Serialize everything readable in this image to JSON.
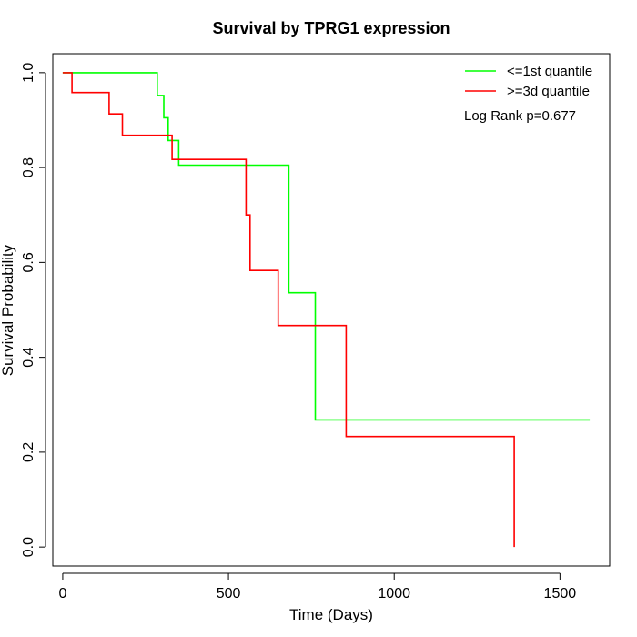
{
  "chart_data": {
    "type": "line",
    "title": "Survival by TPRG1 expression",
    "xlabel": "Time (Days)",
    "ylabel": "Survival Probability",
    "xlim": [
      -30,
      1650
    ],
    "ylim": [
      -0.04,
      1.04
    ],
    "x_ticks": [
      0,
      500,
      1000,
      1500
    ],
    "y_ticks": [
      0.0,
      0.2,
      0.4,
      0.6,
      0.8,
      1.0
    ],
    "x_tick_labels": [
      "0",
      "500",
      "1000",
      "1500"
    ],
    "y_tick_labels": [
      "0.0",
      "0.2",
      "0.4",
      "0.6",
      "0.8",
      "1.0"
    ],
    "grid": false,
    "legend_position": "top-right",
    "annotation": "Log Rank p=0.677",
    "series": [
      {
        "name": "<=1st quantile",
        "color": "#00ff00",
        "points": [
          [
            0,
            1.0
          ],
          [
            285,
            1.0
          ],
          [
            285,
            0.952
          ],
          [
            305,
            0.952
          ],
          [
            305,
            0.905
          ],
          [
            318,
            0.905
          ],
          [
            318,
            0.857
          ],
          [
            350,
            0.857
          ],
          [
            350,
            0.805
          ],
          [
            682,
            0.805
          ],
          [
            682,
            0.536
          ],
          [
            762,
            0.536
          ],
          [
            762,
            0.268
          ],
          [
            1590,
            0.268
          ]
        ]
      },
      {
        "name": ">=3d quantile",
        "color": "#ff0000",
        "points": [
          [
            0,
            1.0
          ],
          [
            28,
            1.0
          ],
          [
            28,
            0.958
          ],
          [
            140,
            0.958
          ],
          [
            140,
            0.913
          ],
          [
            180,
            0.913
          ],
          [
            180,
            0.868
          ],
          [
            330,
            0.868
          ],
          [
            330,
            0.817
          ],
          [
            553,
            0.817
          ],
          [
            553,
            0.7
          ],
          [
            565,
            0.7
          ],
          [
            565,
            0.583
          ],
          [
            650,
            0.583
          ],
          [
            650,
            0.467
          ],
          [
            855,
            0.467
          ],
          [
            855,
            0.233
          ],
          [
            1362,
            0.233
          ],
          [
            1362,
            0.0
          ]
        ]
      }
    ]
  }
}
